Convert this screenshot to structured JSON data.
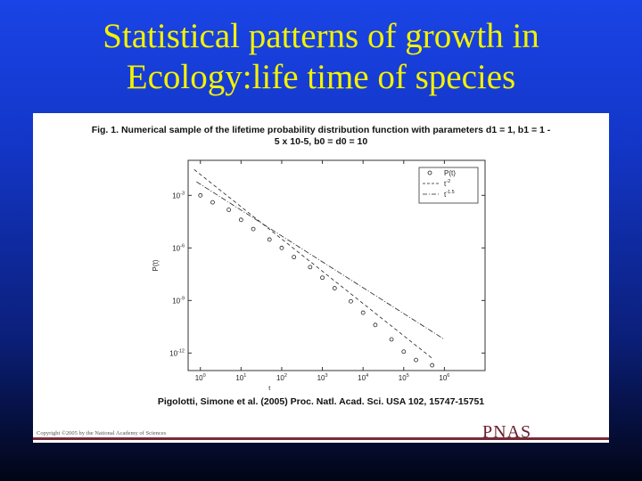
{
  "slide": {
    "title_line1": "Statistical patterns of growth in",
    "title_line2": "Ecology:life time of species"
  },
  "figure": {
    "caption_line1": "Fig. 1. Numerical sample of the lifetime probability distribution function with parameters d1 = 1, b1 = 1 -",
    "caption_line2": "5 x 10-5, b0 = d0 = 10",
    "source": "Pigolotti, Simone et al. (2005) Proc. Natl. Acad. Sci. USA 102, 15747-15751",
    "copyright": "Copyright ©2005 by the National Academy of Sciences",
    "publisher_logo": "PNAS"
  },
  "colors": {
    "background_top": "#1a44e6",
    "background_bottom": "#020515",
    "title": "#f2f200",
    "pnas_logo": "#6a2030"
  },
  "chart_data": {
    "type": "scatter",
    "xlabel": "t",
    "ylabel": "P(t)",
    "x_scale": "log",
    "y_scale": "log",
    "xlim": [
      0.5,
      10000000
    ],
    "ylim": [
      1e-13,
      0.1
    ],
    "x_ticks": [
      {
        "value": 1,
        "base": "10",
        "exp": "0"
      },
      {
        "value": 10,
        "base": "10",
        "exp": "1"
      },
      {
        "value": 100,
        "base": "10",
        "exp": "2"
      },
      {
        "value": 1000,
        "base": "10",
        "exp": "3"
      },
      {
        "value": 10000,
        "base": "10",
        "exp": "4"
      },
      {
        "value": 100000,
        "base": "10",
        "exp": "5"
      },
      {
        "value": 1000000,
        "base": "10",
        "exp": "6"
      }
    ],
    "y_ticks": [
      {
        "value": 0.001,
        "base": "10",
        "exp": "-3"
      },
      {
        "value": 1e-06,
        "base": "10",
        "exp": "-6"
      },
      {
        "value": 1e-09,
        "base": "10",
        "exp": "-9"
      },
      {
        "value": 1e-12,
        "base": "10",
        "exp": "-12"
      }
    ],
    "legend": {
      "placement": "top-right",
      "entries": [
        {
          "label": "P(t)",
          "base": "",
          "exp": "",
          "style": "circle"
        },
        {
          "label": "t",
          "base": "t",
          "exp": "-2",
          "style": "dashed"
        },
        {
          "label": "t",
          "base": "t",
          "exp": "-1.5",
          "style": "dash-dot"
        }
      ]
    },
    "series": [
      {
        "name": "P(t)",
        "style": "circle",
        "x": [
          1,
          2,
          5,
          10,
          20,
          50,
          100,
          200,
          500,
          1000,
          2000,
          5000,
          10000,
          20000,
          50000,
          100000,
          200000,
          500000
        ],
        "y": [
          0.001,
          0.0004,
          0.00015,
          4e-05,
          1.2e-05,
          3e-06,
          1e-06,
          3e-07,
          8e-08,
          2e-08,
          5e-09,
          9e-10,
          2e-10,
          4e-11,
          6e-12,
          1.2e-12,
          4e-13,
          2e-13
        ]
      },
      {
        "name": "t",
        "style": "dashed",
        "x": [
          0.7,
          500000
        ],
        "y": [
          0.03,
          5e-13
        ]
      },
      {
        "name": "t",
        "style": "dash-dot",
        "x": [
          0.8,
          1000000
        ],
        "y": [
          0.006,
          6e-12
        ]
      }
    ]
  }
}
